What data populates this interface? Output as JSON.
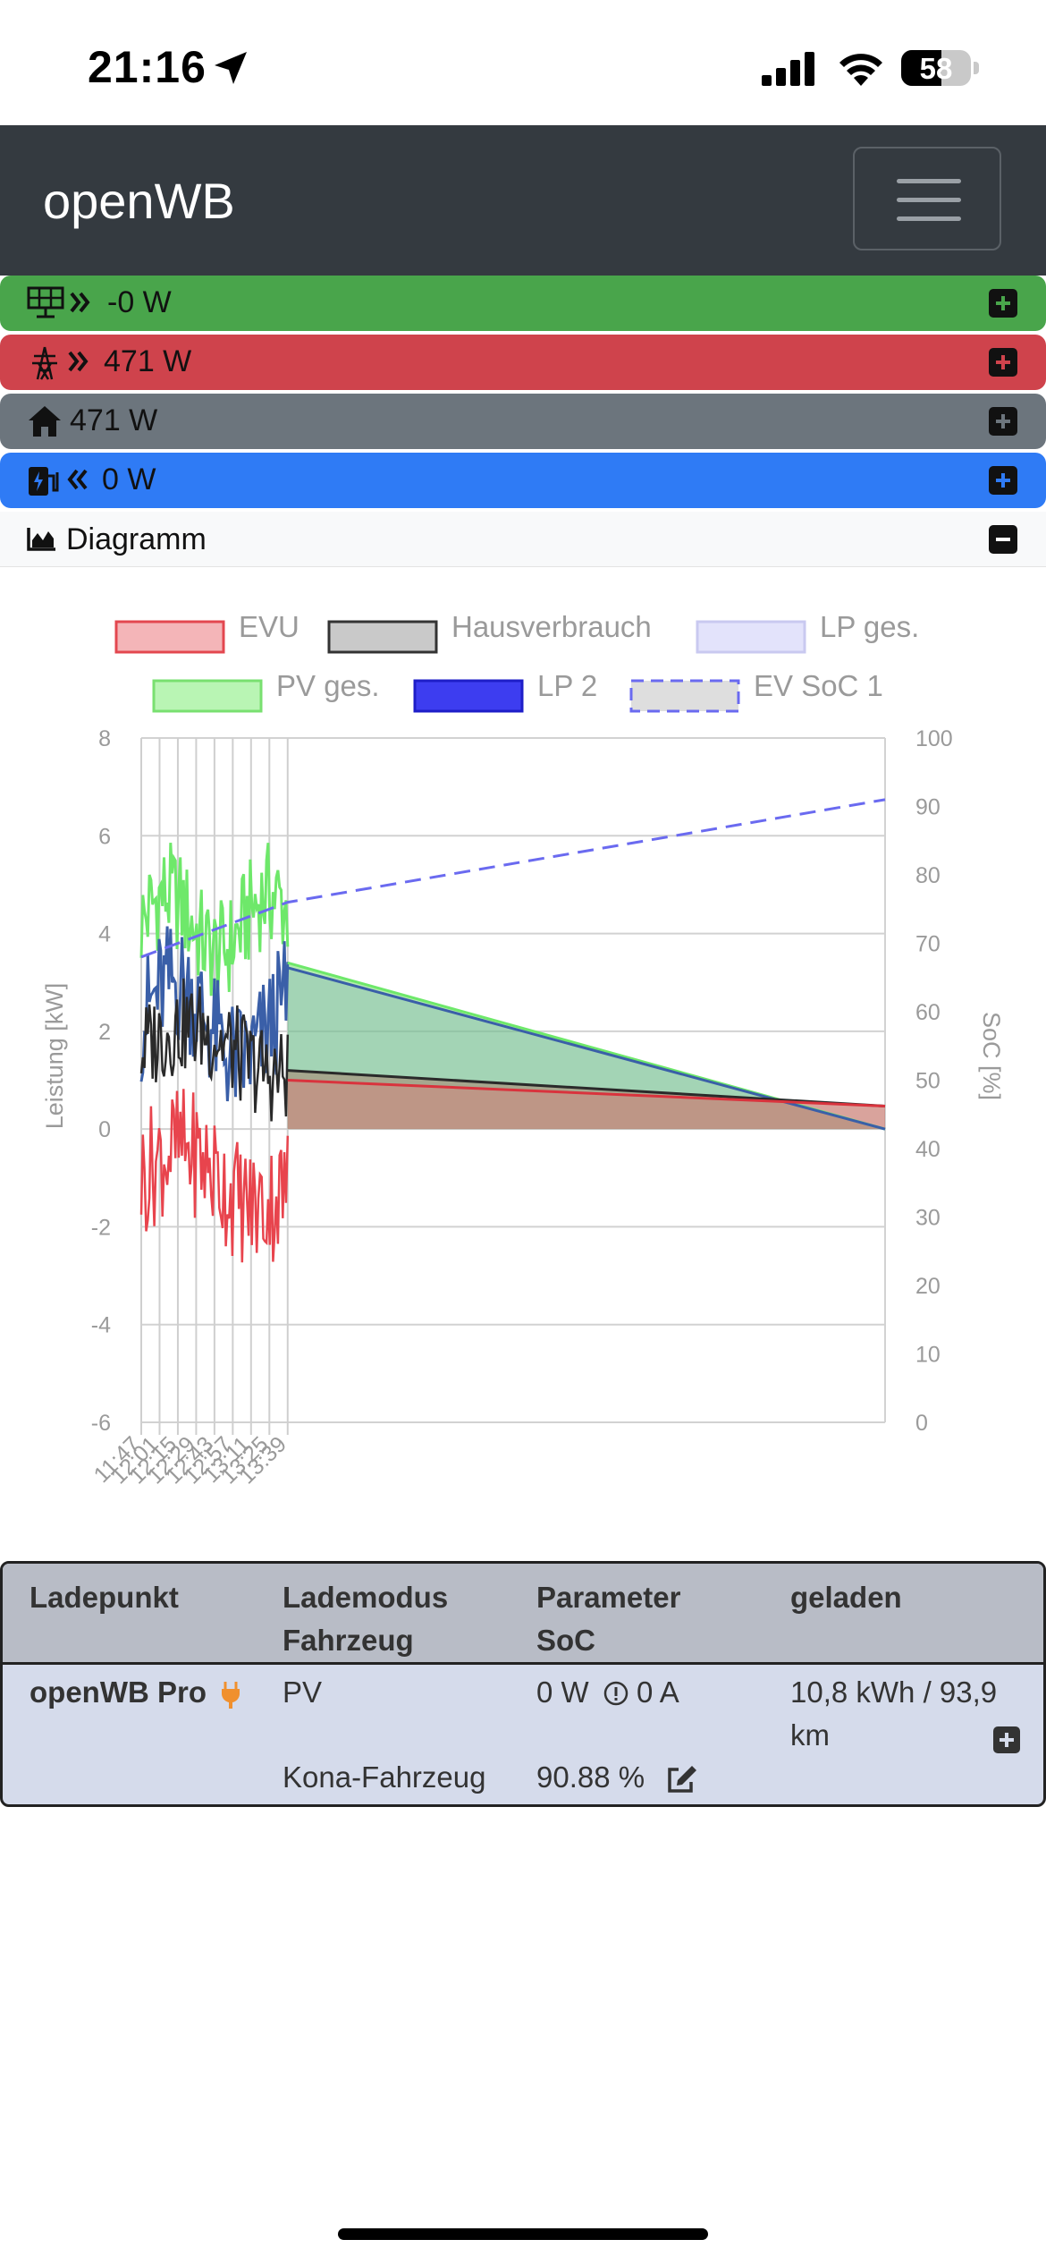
{
  "status_bar": {
    "time": "21:16",
    "battery": "58"
  },
  "navbar": {
    "brand": "openWB"
  },
  "power": {
    "pv": {
      "value": "-0 W",
      "icon": "solar-panel-icon",
      "color": "#49a54b"
    },
    "evu": {
      "value": "471 W",
      "icon": "power-tower-icon",
      "color": "#cf434c"
    },
    "house": {
      "value": "471 W",
      "icon": "home-icon",
      "color": "#6c757d"
    },
    "lp": {
      "value": "0 W",
      "icon": "charging-station-icon",
      "color": "#2f7bf5"
    }
  },
  "diagram": {
    "label": "Diagramm"
  },
  "chart_data": {
    "type": "line",
    "legend": [
      {
        "name": "EVU",
        "color": "#f4b5b8"
      },
      {
        "name": "Hausverbrauch",
        "color": "#c9c9c9"
      },
      {
        "name": "LP ges.",
        "color": "#e3e3fb"
      },
      {
        "name": "PV ges.",
        "color": "#b9f5b4"
      },
      {
        "name": "LP 2",
        "color": "#3d3df0"
      },
      {
        "name": "EV SoC 1",
        "color": "#dedede"
      }
    ],
    "ylabel": "Leistung [kW]",
    "y2label": "SoC [%]",
    "ylim": [
      -6,
      8
    ],
    "y2lim": [
      0,
      100
    ],
    "y_ticks": [
      "8",
      "6",
      "4",
      "2",
      "0",
      "-2",
      "-4",
      "-6"
    ],
    "y2_ticks": [
      "100",
      "90",
      "80",
      "70",
      "60",
      "50",
      "40",
      "30",
      "20",
      "10",
      "0"
    ],
    "x_ticks": [
      "11:47",
      "12:01",
      "12:15",
      "12:29",
      "12:43",
      "12:57",
      "13:11",
      "13:25",
      "13:39"
    ],
    "series": [
      {
        "name": "PV ges.",
        "x": [
          "13:39",
          "21:16"
        ],
        "values": [
          3.4,
          0.0
        ]
      },
      {
        "name": "LP 2",
        "x": [
          "13:39",
          "21:16"
        ],
        "values": [
          3.3,
          0.0
        ]
      },
      {
        "name": "Hausverbrauch",
        "x": [
          "13:39",
          "21:16"
        ],
        "values": [
          1.2,
          0.47
        ]
      },
      {
        "name": "EVU",
        "x": [
          "13:39",
          "21:16"
        ],
        "values": [
          1.0,
          0.47
        ]
      },
      {
        "name": "EV SoC 1",
        "x": [
          "11:47",
          "13:39",
          "21:16"
        ],
        "values": [
          68,
          76,
          91
        ]
      }
    ]
  },
  "table": {
    "headers": {
      "ladepunkt": "Ladepunkt",
      "lademodus": "Lademodus",
      "fahrzeug": "Fahrzeug",
      "parameter": "Parameter",
      "soc": "SoC",
      "geladen": "geladen"
    },
    "row": {
      "name": "openWB Pro",
      "mode": "PV",
      "vehicle": "Kona-Fahrzeug",
      "power": "0 W",
      "current": "0 A",
      "soc": "90.88 %",
      "charged_line1": "10,8 kWh / 93,9",
      "charged_line2": "km"
    }
  }
}
